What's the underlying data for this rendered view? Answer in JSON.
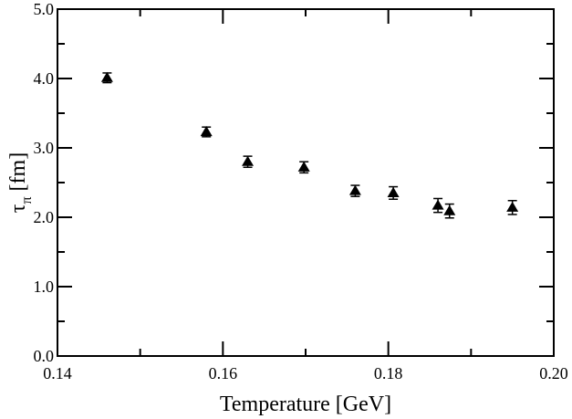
{
  "chart_data": {
    "type": "scatter",
    "xlabel": "Temperature [GeV]",
    "ylabel": "τ",
    "ylabel_subscript": "π",
    "ylabel_suffix": "[fm]",
    "xlim": [
      0.14,
      0.2
    ],
    "ylim": [
      0.0,
      5.0
    ],
    "x_ticks": [
      0.14,
      0.16,
      0.18,
      0.2
    ],
    "x_tick_labels": [
      "0.14",
      "0.16",
      "0.18",
      "0.20"
    ],
    "y_ticks": [
      0.0,
      1.0,
      2.0,
      3.0,
      4.0,
      5.0
    ],
    "y_tick_labels": [
      "0.0",
      "1.0",
      "2.0",
      "3.0",
      "4.0",
      "5.0"
    ],
    "marker": "filled-triangle",
    "marker_color": "#000000",
    "grid": false,
    "points": [
      {
        "x": 0.146,
        "y": 4.01,
        "err": 0.07
      },
      {
        "x": 0.158,
        "y": 3.23,
        "err": 0.07
      },
      {
        "x": 0.163,
        "y": 2.8,
        "err": 0.08
      },
      {
        "x": 0.1698,
        "y": 2.72,
        "err": 0.08
      },
      {
        "x": 0.176,
        "y": 2.38,
        "err": 0.08
      },
      {
        "x": 0.1806,
        "y": 2.35,
        "err": 0.09
      },
      {
        "x": 0.186,
        "y": 2.17,
        "err": 0.1
      },
      {
        "x": 0.1874,
        "y": 2.09,
        "err": 0.1
      },
      {
        "x": 0.195,
        "y": 2.14,
        "err": 0.1
      }
    ]
  }
}
